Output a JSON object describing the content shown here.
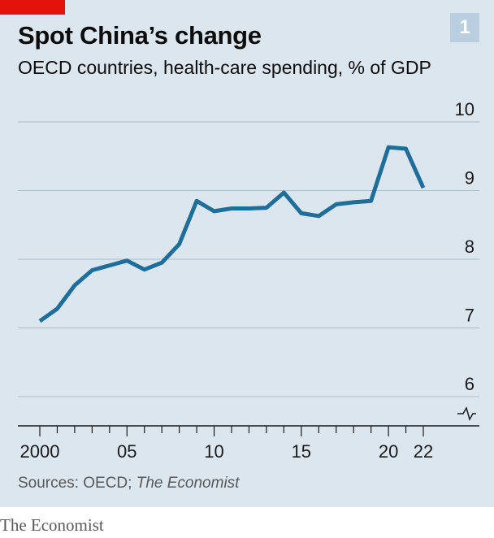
{
  "badge": "1",
  "chart_data": {
    "type": "line",
    "title": "Spot China’s change",
    "subtitle": "OECD countries, health-care spending, % of GDP",
    "x": [
      2000,
      2001,
      2002,
      2003,
      2004,
      2005,
      2006,
      2007,
      2008,
      2009,
      2010,
      2011,
      2012,
      2013,
      2014,
      2015,
      2016,
      2017,
      2018,
      2019,
      2020,
      2021,
      2022
    ],
    "series": [
      {
        "values": [
          7.1,
          7.28,
          7.62,
          7.84,
          7.91,
          7.98,
          7.85,
          7.95,
          8.22,
          8.85,
          8.7,
          8.74,
          8.74,
          8.75,
          8.97,
          8.67,
          8.63,
          8.8,
          8.83,
          8.85,
          9.63,
          9.61,
          9.04
        ],
        "color": "#1e6e99"
      }
    ],
    "xticks": [
      2000,
      2001,
      2002,
      2003,
      2004,
      2005,
      2006,
      2007,
      2008,
      2009,
      2010,
      2011,
      2012,
      2013,
      2014,
      2015,
      2016,
      2017,
      2018,
      2019,
      2020,
      2021,
      2022
    ],
    "xtick_labels": [
      {
        "year": 2000,
        "label": "2000"
      },
      {
        "year": 2005,
        "label": "05"
      },
      {
        "year": 2010,
        "label": "10"
      },
      {
        "year": 2015,
        "label": "15"
      },
      {
        "year": 2020,
        "label": "20"
      },
      {
        "year": 2022,
        "label": "22"
      }
    ],
    "yticks": [
      "10",
      "9",
      "8",
      "7",
      "6"
    ],
    "ylim": [
      6,
      10
    ],
    "xlim": [
      2000,
      2022
    ],
    "grid": true,
    "axis_break": true
  },
  "source": {
    "prefix": "Sources: OECD; ",
    "italic": "The Economist"
  },
  "brand": "The Economist",
  "colors": {
    "line": "#1e6e99",
    "grid": "#a9bcc9",
    "background": "#dce6ee",
    "accent": "#e3120b",
    "badge": "#b9cede"
  }
}
